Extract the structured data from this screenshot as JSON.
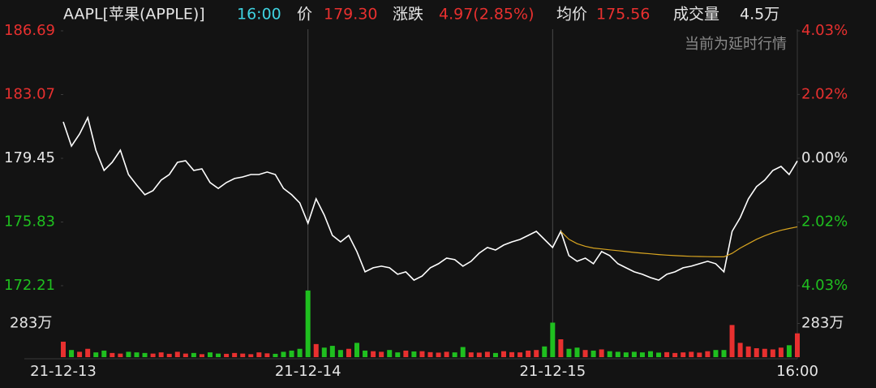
{
  "chart_data": {
    "type": "line",
    "header": {
      "symbol": "AAPL[苹果(APPLE)]",
      "time": "16:00",
      "price_label": "价",
      "price": "179.30",
      "change_label": "涨跌",
      "change": "4.97(2.85%)",
      "avg_label": "均价",
      "avg": "175.56",
      "volume_label": "成交量",
      "volume": "4.5万"
    },
    "note": "当前为延时行情",
    "x": [
      0,
      1,
      2,
      3,
      4,
      5,
      6,
      7,
      8,
      9,
      10,
      11,
      12,
      13,
      14,
      15,
      16,
      17,
      18,
      19,
      20,
      21,
      22,
      23,
      24,
      25,
      26,
      27,
      28,
      29,
      30,
      31,
      32,
      33,
      34,
      35,
      36,
      37,
      38,
      39,
      40,
      41,
      42,
      43,
      44,
      45,
      46,
      47,
      48,
      49,
      50,
      51,
      52,
      53,
      54,
      55,
      56,
      57,
      58,
      59,
      60,
      61,
      62,
      63,
      64,
      65,
      66,
      67,
      68,
      69,
      70,
      71,
      72,
      73,
      74,
      75,
      76,
      77,
      78,
      79,
      80,
      81,
      82,
      83,
      84,
      85,
      86,
      87,
      88,
      89,
      90
    ],
    "xlim": [
      0,
      90
    ],
    "xticks": [
      {
        "value": 0,
        "label": "21-12-13"
      },
      {
        "value": 30,
        "label": "21-12-14"
      },
      {
        "value": 60,
        "label": "21-12-15"
      },
      {
        "value": 90,
        "label": "16:00"
      }
    ],
    "ylim": [
      172.21,
      186.69
    ],
    "yticks": [
      186.69,
      183.07,
      179.45,
      175.83,
      172.21
    ],
    "y2lim": [
      -4.03,
      4.03
    ],
    "y2ticks": [
      {
        "value": 4.03,
        "label": "4.03%"
      },
      {
        "value": 2.02,
        "label": "2.02%"
      },
      {
        "value": 0,
        "label": "0.00%"
      },
      {
        "value": -2.02,
        "label": "2.02%"
      },
      {
        "value": -4.03,
        "label": "4.03%"
      }
    ],
    "up_color": "#e8302f",
    "down_color": "#1fbf1f",
    "flat_color": "#e6e6e6",
    "series": [
      {
        "color": "#ffffff",
        "values": [
          181.52,
          180.14,
          180.83,
          181.76,
          179.91,
          178.76,
          179.22,
          179.91,
          178.53,
          177.93,
          177.38,
          177.61,
          178.21,
          178.53,
          179.22,
          179.31,
          178.76,
          178.85,
          178.07,
          177.74,
          178.07,
          178.3,
          178.39,
          178.53,
          178.53,
          178.67,
          178.53,
          177.74,
          177.38,
          176.91,
          175.76,
          177.15,
          176.22,
          175.07,
          174.7,
          175.07,
          174.15,
          173.0,
          173.23,
          173.32,
          173.23,
          172.86,
          173.0,
          172.53,
          172.76,
          173.23,
          173.46,
          173.78,
          173.69,
          173.32,
          173.6,
          174.06,
          174.38,
          174.24,
          174.52,
          174.7,
          174.84,
          175.07,
          175.3,
          174.84,
          174.38,
          175.3,
          173.92,
          173.6,
          173.78,
          173.46,
          174.15,
          173.92,
          173.46,
          173.23,
          173.0,
          172.86,
          172.67,
          172.53,
          172.86,
          173.0,
          173.23,
          173.32,
          173.46,
          173.6,
          173.46,
          173.0,
          175.3,
          176.08,
          177.15,
          177.84,
          178.21,
          178.76,
          178.99,
          178.53,
          179.3
        ]
      },
      {
        "color": "#d9a520",
        "values": [
          null,
          null,
          null,
          null,
          null,
          null,
          null,
          null,
          null,
          null,
          null,
          null,
          null,
          null,
          null,
          null,
          null,
          null,
          null,
          null,
          null,
          null,
          null,
          null,
          null,
          null,
          null,
          null,
          null,
          null,
          null,
          null,
          null,
          null,
          null,
          null,
          null,
          null,
          null,
          null,
          null,
          null,
          null,
          null,
          null,
          null,
          null,
          null,
          null,
          null,
          null,
          null,
          null,
          null,
          null,
          null,
          null,
          null,
          null,
          null,
          null,
          175.3,
          174.85,
          174.6,
          174.45,
          174.35,
          174.3,
          174.25,
          174.2,
          174.15,
          174.1,
          174.06,
          174.02,
          173.98,
          173.95,
          173.92,
          173.9,
          173.88,
          173.87,
          173.86,
          173.85,
          173.85,
          174.05,
          174.35,
          174.6,
          174.85,
          175.05,
          175.22,
          175.36,
          175.46,
          175.56
        ]
      }
    ],
    "volume": {
      "ylim": [
        0,
        566
      ],
      "yticks": [
        {
          "value": 283,
          "label": "283万"
        }
      ],
      "values": [
        130,
        60,
        45,
        70,
        40,
        55,
        35,
        30,
        45,
        40,
        35,
        30,
        40,
        28,
        45,
        30,
        35,
        25,
        40,
        30,
        28,
        35,
        30,
        25,
        40,
        32,
        28,
        45,
        55,
        70,
        560,
        110,
        80,
        95,
        60,
        70,
        120,
        55,
        50,
        45,
        60,
        40,
        55,
        48,
        50,
        42,
        38,
        45,
        40,
        85,
        40,
        38,
        45,
        35,
        50,
        42,
        40,
        55,
        60,
        90,
        290,
        150,
        70,
        80,
        60,
        55,
        65,
        50,
        45,
        40,
        45,
        40,
        50,
        38,
        42,
        35,
        40,
        45,
        38,
        50,
        60,
        60,
        270,
        120,
        90,
        75,
        70,
        65,
        80,
        100,
        200
      ]
    }
  }
}
